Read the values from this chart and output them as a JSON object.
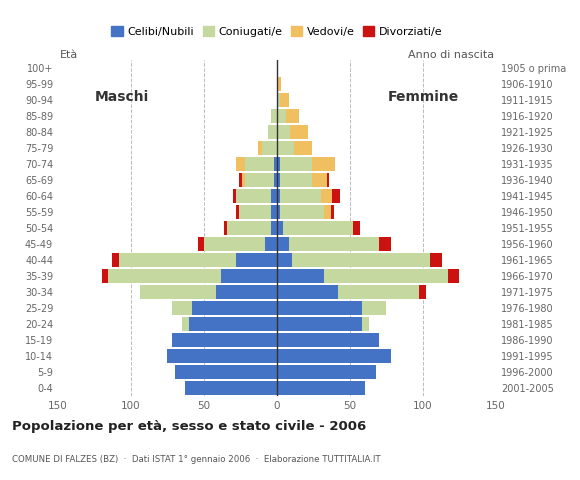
{
  "age_groups": [
    "100+",
    "95-99",
    "90-94",
    "85-89",
    "80-84",
    "75-79",
    "70-74",
    "65-69",
    "60-64",
    "55-59",
    "50-54",
    "45-49",
    "40-44",
    "35-39",
    "30-34",
    "25-29",
    "20-24",
    "15-19",
    "10-14",
    "5-9",
    "0-4"
  ],
  "birth_years": [
    "1905 o prima",
    "1906-1910",
    "1911-1915",
    "1916-1920",
    "1921-1925",
    "1926-1930",
    "1931-1935",
    "1936-1940",
    "1941-1945",
    "1946-1950",
    "1951-1955",
    "1956-1960",
    "1961-1965",
    "1966-1970",
    "1971-1975",
    "1976-1980",
    "1981-1985",
    "1986-1990",
    "1991-1995",
    "1996-2000",
    "2001-2005"
  ],
  "males_celibi": [
    0,
    0,
    0,
    0,
    0,
    0,
    2,
    2,
    4,
    4,
    4,
    8,
    28,
    38,
    42,
    58,
    60,
    72,
    75,
    70,
    63
  ],
  "males_coniugati": [
    0,
    0,
    0,
    4,
    6,
    10,
    20,
    20,
    24,
    22,
    30,
    42,
    80,
    78,
    52,
    14,
    5,
    0,
    0,
    0,
    0
  ],
  "males_vedovi": [
    0,
    0,
    0,
    0,
    0,
    3,
    6,
    2,
    0,
    0,
    0,
    0,
    0,
    0,
    0,
    0,
    0,
    0,
    0,
    0,
    0
  ],
  "males_divorziati": [
    0,
    0,
    0,
    0,
    0,
    0,
    0,
    2,
    2,
    2,
    2,
    4,
    5,
    4,
    0,
    0,
    0,
    0,
    0,
    0,
    0
  ],
  "females_nubili": [
    0,
    0,
    0,
    0,
    0,
    0,
    2,
    2,
    2,
    2,
    4,
    8,
    10,
    32,
    42,
    58,
    58,
    70,
    78,
    68,
    60
  ],
  "females_coniugate": [
    0,
    0,
    2,
    6,
    9,
    12,
    22,
    22,
    28,
    30,
    48,
    62,
    95,
    85,
    55,
    17,
    5,
    0,
    0,
    0,
    0
  ],
  "females_vedove": [
    0,
    3,
    6,
    9,
    12,
    12,
    16,
    10,
    8,
    5,
    0,
    0,
    0,
    0,
    0,
    0,
    0,
    0,
    0,
    0,
    0
  ],
  "females_divorziate": [
    0,
    0,
    0,
    0,
    0,
    0,
    0,
    2,
    5,
    2,
    5,
    8,
    8,
    8,
    5,
    0,
    0,
    0,
    0,
    0,
    0
  ],
  "col_celibi": "#4472c4",
  "col_coniugati": "#c5d8a0",
  "col_vedovi": "#f0c060",
  "col_divorziati": "#cc1111",
  "xlim": 150,
  "title": "Popolazione per età, sesso e stato civile - 2006",
  "subtitle": "COMUNE DI FALZES (BZ)  ·  Dati ISTAT 1° gennaio 2006  ·  Elaborazione TUTTITALIA.IT",
  "legend_labels": [
    "Celibi/Nubili",
    "Coniugati/e",
    "Vedovi/e",
    "Divorziati/e"
  ],
  "bg_color": "#ffffff",
  "grid_color": "#bbbbbb",
  "bar_height": 0.85
}
